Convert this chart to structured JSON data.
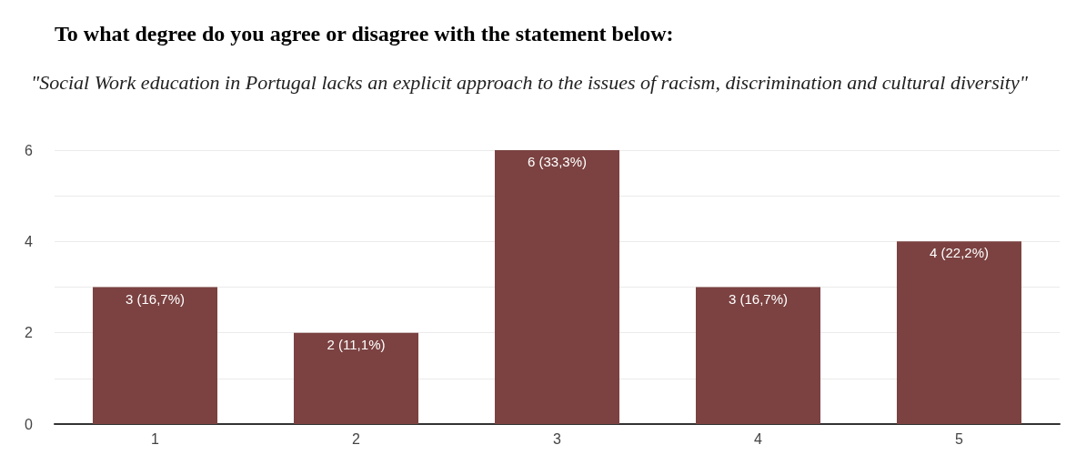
{
  "chart_data": {
    "type": "bar",
    "title": "To what degree do you agree or disagree with the statement below:",
    "subtitle": "\"Social Work education in Portugal lacks an explicit approach to the issues of racism, discrimination and cultural diversity\"",
    "categories": [
      "1",
      "2",
      "3",
      "4",
      "5"
    ],
    "values": [
      3,
      2,
      6,
      3,
      4
    ],
    "value_labels": [
      "3 (16,7%)",
      "2 (11,1%)",
      "6 (33,3%)",
      "3 (16,7%)",
      "4 (22,2%)"
    ],
    "color": "#7b4241",
    "ylim": [
      0,
      6
    ],
    "yticks": [
      0,
      {
        "value": 1,
        "label": null
      },
      2,
      {
        "value": 3,
        "label": null
      },
      4,
      {
        "value": 5,
        "label": null
      },
      6
    ],
    "grid": true
  }
}
